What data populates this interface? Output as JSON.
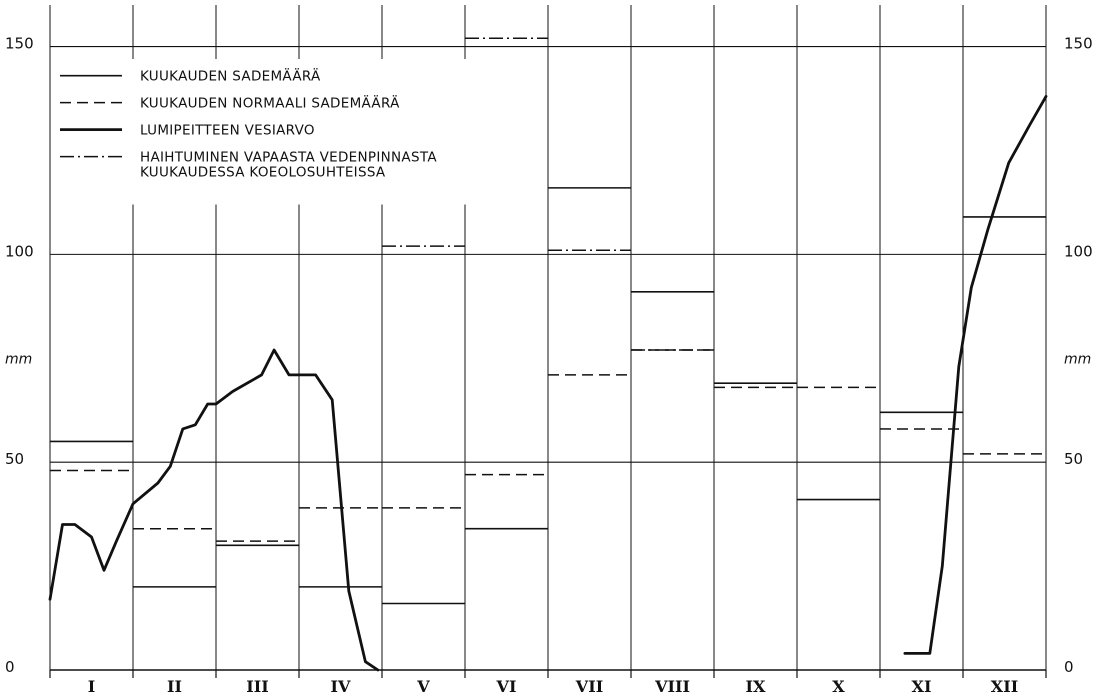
{
  "chart_data": {
    "type": "line",
    "y_unit": "mm",
    "ylim": [
      0,
      160
    ],
    "y_ticks": [
      0,
      50,
      100,
      150
    ],
    "categories": [
      "I",
      "II",
      "III",
      "IV",
      "V",
      "VI",
      "VII",
      "VIII",
      "IX",
      "X",
      "XI",
      "XII"
    ],
    "legend": [
      {
        "key": "precipitation",
        "lines": [
          "KUUKAUDEN SADEMÄÄRÄ"
        ],
        "style": "thin-solid"
      },
      {
        "key": "normal",
        "lines": [
          "KUUKAUDEN NORMAALI SADEMÄÄRÄ"
        ],
        "style": "dashed"
      },
      {
        "key": "snow",
        "lines": [
          "LUMIPEITTEEN VESIARVO"
        ],
        "style": "thick-solid"
      },
      {
        "key": "evaporation",
        "lines": [
          "HAIHTUMINEN VAPAASTA VEDENPINNASTA",
          "KUUKAUDESSA KOEOLOSUHTEISSA"
        ],
        "style": "dash-dot"
      }
    ],
    "series": [
      {
        "name": "KUUKAUDEN SADEMÄÄRÄ",
        "style": "thin-solid",
        "values": [
          55,
          20,
          30,
          20,
          16,
          34,
          116,
          91,
          69,
          41,
          62,
          109
        ]
      },
      {
        "name": "KUUKAUDEN NORMAALI SADEMÄÄRÄ",
        "style": "dashed",
        "values": [
          48,
          34,
          31,
          39,
          39,
          47,
          71,
          77,
          68,
          68,
          58,
          52
        ]
      },
      {
        "name": "HAIHTUMINEN VAPAASTA VEDENPINNASTA KUUKAUDESSA KOEOLOSUHTEISSA",
        "style": "dash-dot",
        "values": [
          null,
          null,
          null,
          null,
          102,
          152,
          101,
          77,
          null,
          null,
          null,
          null
        ]
      },
      {
        "name": "LUMIPEITTEEN VESIARVO",
        "style": "thick-solid",
        "points": [
          [
            0.0,
            17
          ],
          [
            0.15,
            35
          ],
          [
            0.3,
            35
          ],
          [
            0.5,
            32
          ],
          [
            0.65,
            24
          ],
          [
            0.8,
            31
          ],
          [
            1.0,
            40
          ],
          [
            1.3,
            45
          ],
          [
            1.45,
            49
          ],
          [
            1.6,
            58
          ],
          [
            1.75,
            59
          ],
          [
            1.9,
            64
          ],
          [
            2.0,
            64
          ],
          [
            2.2,
            67
          ],
          [
            2.55,
            71
          ],
          [
            2.7,
            77
          ],
          [
            2.88,
            71
          ],
          [
            3.0,
            71
          ],
          [
            3.2,
            71
          ],
          [
            3.4,
            65
          ],
          [
            3.6,
            19
          ],
          [
            3.8,
            2
          ],
          [
            3.95,
            0
          ],
          [
            10.3,
            4
          ],
          [
            10.6,
            4
          ],
          [
            10.75,
            25
          ],
          [
            10.95,
            73
          ],
          [
            11.1,
            92
          ],
          [
            11.3,
            106
          ],
          [
            11.55,
            122
          ],
          [
            11.8,
            131
          ],
          [
            12.0,
            138
          ]
        ]
      }
    ]
  }
}
